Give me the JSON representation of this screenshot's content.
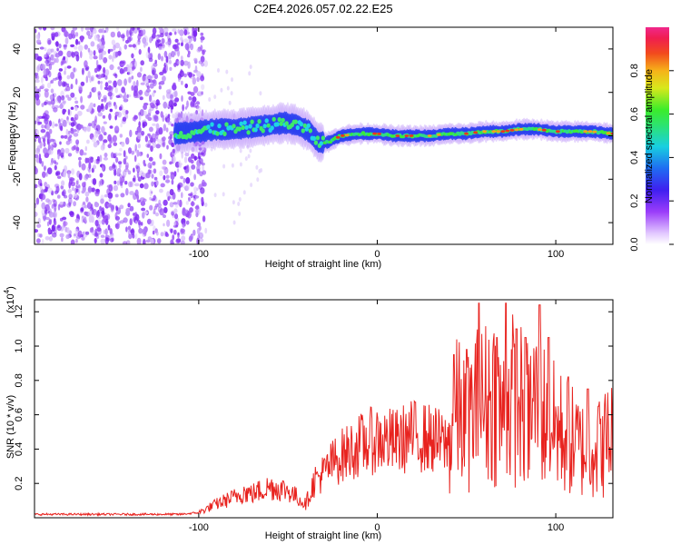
{
  "title": "C2E4.2026.057.02.22.E25",
  "chart_data": [
    {
      "type": "heatmap",
      "name": "spectrogram",
      "xlabel": "Height of straight line (km)",
      "ylabel": "Frequency (Hz)",
      "xlim": [
        -192,
        132
      ],
      "ylim": [
        -50,
        50
      ],
      "xticks": [
        -100,
        0,
        100
      ],
      "yticks": [
        -40,
        -20,
        0,
        20,
        40
      ],
      "noise_region_km": [
        -192,
        -100
      ],
      "signal_start_km": -113,
      "ridge": {
        "x": [
          -113,
          -100,
          -90,
          -80,
          -70,
          -60,
          -52,
          -45,
          -38,
          -33,
          -28,
          -20,
          -10,
          0,
          10,
          20,
          30,
          40,
          50,
          60,
          70,
          80,
          90,
          100,
          110,
          120,
          132
        ],
        "freq": [
          1,
          2,
          3,
          3,
          4,
          5,
          6,
          5,
          2,
          -3,
          -3,
          0,
          1,
          1,
          0,
          0,
          0,
          1,
          1,
          2,
          2,
          3,
          3,
          2,
          2,
          2,
          1
        ]
      },
      "colorbar": {
        "label": "Normalized spectral amplitude",
        "range": [
          0,
          1
        ],
        "ticks": [
          "0.0",
          "0.2",
          "0.4",
          "0.6",
          "0.8"
        ]
      }
    },
    {
      "type": "line",
      "name": "snr",
      "xlabel": "Height of straight line (km)",
      "ylabel": "SNR (10 * v/v)",
      "multiplier_label": "(x10",
      "multiplier_exp": "4",
      "xlim": [
        -192,
        132
      ],
      "ylim": [
        0,
        1.27
      ],
      "xticks": [
        -100,
        0,
        100
      ],
      "yticks": [
        0.2,
        0.4,
        0.6,
        0.8,
        1.0,
        1.2
      ],
      "color": "#e8231f",
      "series": [
        {
          "name": "SNR",
          "x": [
            -192,
            -140,
            -110,
            -100,
            -90,
            -80,
            -75,
            -70,
            -60,
            -50,
            -45,
            -40,
            -35,
            -30,
            -25,
            -20,
            -10,
            0,
            10,
            20,
            30,
            40,
            45,
            50,
            55,
            60,
            65,
            70,
            75,
            80,
            85,
            90,
            95,
            100,
            105,
            110,
            115,
            120,
            125,
            132
          ],
          "y": [
            0.02,
            0.02,
            0.02,
            0.03,
            0.08,
            0.12,
            0.15,
            0.14,
            0.18,
            0.16,
            0.12,
            0.08,
            0.22,
            0.26,
            0.32,
            0.36,
            0.42,
            0.46,
            0.44,
            0.48,
            0.46,
            0.42,
            0.62,
            0.55,
            0.64,
            0.66,
            0.72,
            0.58,
            0.7,
            0.66,
            0.6,
            0.7,
            0.56,
            0.52,
            0.48,
            0.44,
            0.4,
            0.44,
            0.4,
            0.5
          ],
          "peaks": [
            {
              "x": 43,
              "y": 0.95
            },
            {
              "x": 50,
              "y": 0.98
            },
            {
              "x": 57,
              "y": 1.25
            },
            {
              "x": 67,
              "y": 1.05
            },
            {
              "x": 72,
              "y": 1.25
            },
            {
              "x": 78,
              "y": 1.1
            },
            {
              "x": 83,
              "y": 1.05
            },
            {
              "x": 91,
              "y": 1.24
            },
            {
              "x": 96,
              "y": 1.05
            },
            {
              "x": 107,
              "y": 0.82
            },
            {
              "x": 118,
              "y": 0.75
            },
            {
              "x": 124,
              "y": 0.65
            }
          ]
        }
      ]
    }
  ]
}
